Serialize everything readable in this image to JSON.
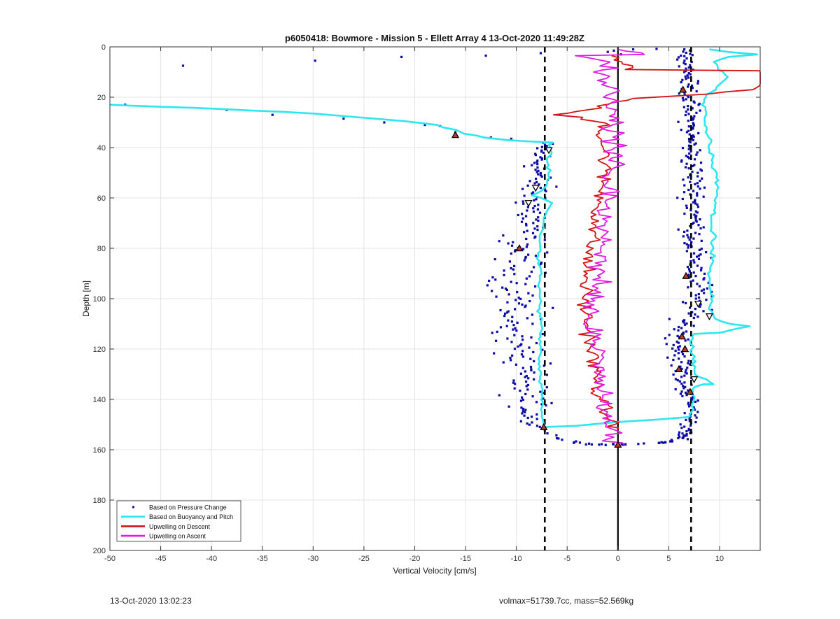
{
  "footer": {
    "timestamp": "13-Oct-2020 13:02:23",
    "vol_mass": "volmax=51739.7cc, mass=52.569kg"
  },
  "chart_data": {
    "type": "scatter",
    "title": "p6050418: Bowmore - Mission 5 - Ellett Array 4 13-Oct-2020 11:49:28Z",
    "xlabel": "Vertical Velocity [cm/s]",
    "ylabel": "Depth [m]",
    "xlim": [
      -50,
      14
    ],
    "ylim": [
      0,
      200
    ],
    "y_reversed": true,
    "grid": true,
    "x_ticks": [
      -50,
      -45,
      -40,
      -35,
      -30,
      -25,
      -20,
      -15,
      -10,
      -5,
      0,
      5,
      10
    ],
    "y_ticks": [
      0,
      20,
      40,
      60,
      80,
      100,
      120,
      140,
      160,
      180,
      200
    ],
    "legend_position": "bottom-left",
    "colors": {
      "pressure": "#0a0aa8",
      "buoyancy": "#2ee6f0",
      "descent": "#d41414",
      "ascent": "#e01be0",
      "reference": "#000000",
      "marker_fill": "#c0392b"
    },
    "series": [
      {
        "name": "Based on Pressure Change",
        "style": "dots",
        "descent_outliers": [
          [
            -48.5,
            23
          ],
          [
            -42.8,
            7.5
          ],
          [
            -38.5,
            25
          ],
          [
            -34,
            27
          ],
          [
            -29.8,
            5.5
          ],
          [
            -27,
            28.5
          ],
          [
            -23,
            30
          ],
          [
            -21.3,
            4
          ],
          [
            -19,
            31
          ],
          [
            -17.5,
            31.5
          ],
          [
            -16,
            34
          ],
          [
            -13,
            3.5
          ],
          [
            -12.5,
            36
          ],
          [
            -10.5,
            36.5
          ],
          [
            -7.6,
            2.5
          ]
        ],
        "descent_band": [
          [
            38,
            -7.5,
            1.2
          ],
          [
            60,
            -8.2,
            1.8
          ],
          [
            80,
            -9.5,
            2.2
          ],
          [
            100,
            -10,
            2.5
          ],
          [
            120,
            -9.8,
            2.4
          ],
          [
            140,
            -9,
            2.0
          ],
          [
            150,
            -8,
            1.5
          ]
        ],
        "ascent_band": [
          [
            2,
            6.8,
            0.6
          ],
          [
            20,
            7,
            0.9
          ],
          [
            40,
            7.2,
            1.0
          ],
          [
            60,
            7.5,
            1.2
          ],
          [
            80,
            7.5,
            1.2
          ],
          [
            100,
            8,
            1.5
          ],
          [
            115,
            6,
            1.2
          ],
          [
            130,
            6.2,
            1.0
          ],
          [
            145,
            7.4,
            0.8
          ],
          [
            155,
            6.5,
            0.6
          ]
        ],
        "bottom_arc": [
          [
            -7.5,
            152
          ],
          [
            -5.5,
            156
          ],
          [
            -3,
            158
          ],
          [
            0,
            158
          ],
          [
            3,
            157.5
          ],
          [
            5,
            157
          ],
          [
            6.5,
            155
          ],
          [
            7,
            153
          ]
        ],
        "top_surface_points": [
          [
            -1,
            2
          ],
          [
            -0.4,
            1.5
          ],
          [
            0.3,
            3
          ],
          [
            1.5,
            1
          ],
          [
            3.8,
            0.8
          ],
          [
            6.2,
            3.5
          ]
        ]
      },
      {
        "name": "Based on Buoyancy and Pitch",
        "style": "line",
        "descent": [
          [
            -50,
            23
          ],
          [
            -48,
            23.3
          ],
          [
            -45,
            23.8
          ],
          [
            -42,
            24.2
          ],
          [
            -39,
            24.7
          ],
          [
            -36,
            25.3
          ],
          [
            -33,
            25.8
          ],
          [
            -30,
            26.5
          ],
          [
            -27,
            27.5
          ],
          [
            -24,
            28.5
          ],
          [
            -21,
            29.5
          ],
          [
            -18,
            31
          ],
          [
            -16,
            33
          ],
          [
            -15,
            34.5
          ],
          [
            -13,
            36
          ],
          [
            -11,
            37
          ],
          [
            -9,
            37.5
          ],
          [
            -6.5,
            38
          ],
          [
            -6.7,
            40
          ],
          [
            -6.5,
            42
          ],
          [
            -7,
            45
          ],
          [
            -6.8,
            50
          ],
          [
            -7,
            55
          ],
          [
            -7.5,
            57
          ],
          [
            -8.5,
            59
          ],
          [
            -7.5,
            60
          ],
          [
            -6.5,
            62
          ],
          [
            -7,
            65
          ],
          [
            -7.3,
            70
          ],
          [
            -7.6,
            75
          ],
          [
            -7.7,
            80
          ],
          [
            -7.9,
            85
          ],
          [
            -7.6,
            90
          ],
          [
            -7.8,
            95
          ],
          [
            -7.6,
            100
          ],
          [
            -7.8,
            105
          ],
          [
            -7.5,
            110
          ],
          [
            -7.7,
            115
          ],
          [
            -7.6,
            120
          ],
          [
            -7.8,
            125
          ],
          [
            -7.7,
            130
          ],
          [
            -7.6,
            135
          ],
          [
            -7.5,
            140
          ],
          [
            -7.5,
            145
          ],
          [
            -7.4,
            149
          ],
          [
            -7.3,
            151
          ],
          [
            -4,
            150.5
          ],
          [
            0,
            149
          ],
          [
            4,
            148
          ],
          [
            7,
            147
          ]
        ],
        "ascent": [
          [
            7,
            147
          ],
          [
            7.2,
            144
          ],
          [
            7.4,
            141
          ],
          [
            7.5,
            139
          ],
          [
            7.2,
            137
          ],
          [
            7.5,
            135
          ],
          [
            8.5,
            134
          ],
          [
            9.5,
            134
          ],
          [
            7.5,
            130
          ],
          [
            7.4,
            125
          ],
          [
            7.2,
            120
          ],
          [
            7.3,
            116
          ],
          [
            7.5,
            114
          ],
          [
            10,
            113.5
          ],
          [
            12.8,
            111
          ],
          [
            11,
            110
          ],
          [
            9.5,
            108
          ],
          [
            9,
            104
          ],
          [
            9.2,
            100
          ],
          [
            9.1,
            95
          ],
          [
            9,
            90
          ],
          [
            9.3,
            85
          ],
          [
            9.2,
            80
          ],
          [
            9.4,
            75
          ],
          [
            9.1,
            70
          ],
          [
            9.4,
            65
          ],
          [
            9.6,
            60
          ],
          [
            9.8,
            55
          ],
          [
            9.6,
            50
          ],
          [
            9.2,
            47
          ],
          [
            9.4,
            44
          ],
          [
            9,
            41
          ],
          [
            9.2,
            38
          ],
          [
            8.8,
            34
          ],
          [
            8.6,
            30
          ],
          [
            8.7,
            26
          ],
          [
            8.4,
            22
          ],
          [
            8.6,
            19
          ],
          [
            9.5,
            17
          ],
          [
            10.2,
            14
          ],
          [
            10.8,
            12
          ],
          [
            10,
            9
          ],
          [
            9.5,
            6
          ],
          [
            11,
            4
          ],
          [
            13.5,
            3
          ],
          [
            11,
            2
          ],
          [
            9,
            1
          ]
        ]
      },
      {
        "name": "Upwelling on Descent",
        "style": "line",
        "points": [
          [
            -0.5,
            3.5
          ],
          [
            0.5,
            6
          ],
          [
            1.2,
            9
          ],
          [
            14,
            9.5
          ],
          [
            14,
            17
          ],
          [
            2,
            20.5
          ],
          [
            -0.5,
            22
          ],
          [
            -3,
            25
          ],
          [
            -6,
            27
          ],
          [
            -4,
            28
          ],
          [
            -2,
            29.5
          ],
          [
            -1,
            31
          ],
          [
            -1.5,
            33
          ],
          [
            -1.7,
            35
          ],
          [
            -1.4,
            40
          ],
          [
            -1.2,
            45
          ],
          [
            -1.4,
            50
          ],
          [
            -1.5,
            55
          ],
          [
            -1.7,
            60
          ],
          [
            -2,
            65
          ],
          [
            -2.2,
            70
          ],
          [
            -2.5,
            75
          ],
          [
            -2.7,
            80
          ],
          [
            -3,
            85
          ],
          [
            -3.1,
            90
          ],
          [
            -3.2,
            95
          ],
          [
            -3.3,
            100
          ],
          [
            -3.2,
            105
          ],
          [
            -3,
            110
          ],
          [
            -2.8,
            115
          ],
          [
            -2.6,
            120
          ],
          [
            -2.4,
            125
          ],
          [
            -2.2,
            130
          ],
          [
            -2,
            135
          ],
          [
            -1.8,
            140
          ],
          [
            -1.2,
            145
          ],
          [
            -0.5,
            150
          ],
          [
            0,
            152
          ]
        ]
      },
      {
        "name": "Upwelling on Ascent",
        "style": "line",
        "points": [
          [
            0,
            158
          ],
          [
            -0.5,
            155
          ],
          [
            -1,
            150
          ],
          [
            -1.3,
            145
          ],
          [
            -1.5,
            140
          ],
          [
            -1.7,
            135
          ],
          [
            -1.8,
            130
          ],
          [
            -1.9,
            125
          ],
          [
            -2,
            120
          ],
          [
            -2.2,
            115
          ],
          [
            -3.5,
            110
          ],
          [
            -2.3,
            105
          ],
          [
            -2.2,
            100
          ],
          [
            -2,
            95
          ],
          [
            -1.8,
            90
          ],
          [
            -1.6,
            85
          ],
          [
            -1.5,
            80
          ],
          [
            -1.4,
            75
          ],
          [
            -1.2,
            70
          ],
          [
            -1,
            65
          ],
          [
            -0.8,
            60
          ],
          [
            -0.6,
            55
          ],
          [
            -0.5,
            50
          ],
          [
            -0.4,
            45
          ],
          [
            -0.3,
            40
          ],
          [
            -0.4,
            35
          ],
          [
            -0.5,
            30
          ],
          [
            -0.7,
            25
          ],
          [
            -0.8,
            20
          ],
          [
            -1,
            15
          ],
          [
            -1.2,
            10
          ],
          [
            -0.8,
            6
          ],
          [
            -5,
            3.5
          ],
          [
            3,
            3
          ],
          [
            0,
            1
          ]
        ]
      }
    ],
    "reference_lines": {
      "zero": 0,
      "bounds": [
        -7.2,
        7.2
      ]
    },
    "markers_up": [
      [
        -16,
        35
      ],
      [
        -9.7,
        80
      ],
      [
        -7.3,
        151
      ],
      [
        6.4,
        17
      ],
      [
        6.7,
        91
      ],
      [
        6.3,
        115
      ],
      [
        6.6,
        120
      ],
      [
        6,
        128
      ],
      [
        7.1,
        137
      ],
      [
        0,
        158
      ]
    ],
    "markers_down": [
      [
        -6.8,
        41
      ],
      [
        -8.1,
        56
      ],
      [
        -8.8,
        62
      ],
      [
        7.9,
        102
      ],
      [
        9,
        107
      ],
      [
        7.5,
        132
      ]
    ]
  }
}
